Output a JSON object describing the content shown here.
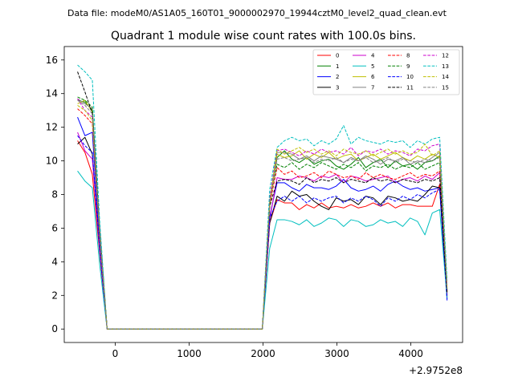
{
  "chart_data": {
    "type": "line",
    "suptitle": "Data file: modeM0/AS1A05_160T01_9000002970_19944cztM0_level2_quad_clean.evt",
    "title": "Quadrant 1 module wise count rates with 100.0s bins.",
    "xlabel": "",
    "ylabel": "",
    "x_offset_label": "+2.9752e8",
    "xlim": [
      -690,
      4700
    ],
    "ylim": [
      -0.8,
      16.8
    ],
    "x_ticks": [
      0,
      1000,
      2000,
      3000,
      4000
    ],
    "y_ticks": [
      0,
      2,
      4,
      6,
      8,
      10,
      12,
      14,
      16
    ],
    "x": [
      -510,
      -410,
      -310,
      -210,
      -110,
      1990,
      2090,
      2190,
      2290,
      2390,
      2490,
      2590,
      2690,
      2790,
      2890,
      2990,
      3090,
      3190,
      3290,
      3390,
      3490,
      3590,
      3690,
      3790,
      3890,
      3990,
      4090,
      4190,
      4290,
      4390,
      4490
    ],
    "legend": {
      "location": "upper-right",
      "columns": 4
    },
    "series": [
      {
        "name": "0",
        "color": "#ff0000",
        "dash": "solid",
        "values": [
          11.2,
          10.5,
          9.2,
          4.5,
          0.0,
          0.0,
          6.3,
          7.7,
          7.5,
          7.5,
          7.1,
          7.4,
          7.2,
          7.5,
          7.2,
          7.3,
          7.2,
          7.4,
          7.2,
          7.3,
          7.5,
          7.3,
          7.5,
          7.2,
          7.4,
          7.4,
          7.3,
          7.3,
          7.3,
          8.6,
          2.0
        ]
      },
      {
        "name": "1",
        "color": "#008000",
        "dash": "solid",
        "values": [
          13.6,
          13.5,
          13.0,
          5.8,
          0.0,
          0.0,
          7.5,
          10.2,
          10.6,
          10.1,
          9.9,
          10.2,
          9.8,
          10.0,
          10.1,
          9.7,
          9.5,
          9.8,
          10.2,
          9.6,
          9.9,
          10.1,
          9.6,
          10.0,
          9.7,
          9.8,
          9.5,
          9.9,
          10.0,
          10.3,
          2.3
        ]
      },
      {
        "name": "2",
        "color": "#0000ff",
        "dash": "solid",
        "values": [
          12.6,
          11.5,
          11.7,
          5.0,
          0.0,
          0.0,
          6.7,
          8.7,
          8.7,
          8.4,
          8.2,
          8.6,
          8.4,
          8.4,
          8.3,
          8.5,
          8.9,
          8.4,
          8.2,
          8.3,
          8.5,
          8.2,
          8.6,
          8.8,
          8.5,
          8.3,
          8.4,
          8.2,
          8.3,
          8.4,
          1.7
        ]
      },
      {
        "name": "3",
        "color": "#000000",
        "dash": "solid",
        "values": [
          11.0,
          11.4,
          10.4,
          4.6,
          0.0,
          0.0,
          6.3,
          7.9,
          7.6,
          8.2,
          7.9,
          8.0,
          7.6,
          7.3,
          7.1,
          7.8,
          7.6,
          7.7,
          7.4,
          7.9,
          7.8,
          7.4,
          7.9,
          7.8,
          7.6,
          7.7,
          7.6,
          8.0,
          8.5,
          8.4,
          1.9
        ]
      },
      {
        "name": "4",
        "color": "#cc00cc",
        "dash": "solid",
        "values": [
          11.7,
          10.6,
          10.1,
          4.7,
          0.0,
          0.0,
          6.5,
          9.0,
          8.9,
          8.9,
          9.1,
          9.0,
          8.8,
          9.1,
          9.0,
          9.2,
          8.7,
          9.1,
          9.0,
          8.8,
          8.9,
          9.0,
          9.1,
          8.7,
          8.9,
          9.0,
          8.8,
          9.1,
          8.9,
          9.3,
          2.1
        ]
      },
      {
        "name": "5",
        "color": "#00bfbf",
        "dash": "solid",
        "values": [
          9.4,
          8.8,
          8.4,
          3.8,
          0.0,
          0.0,
          4.8,
          6.5,
          6.5,
          6.4,
          6.2,
          6.5,
          6.1,
          6.3,
          6.6,
          6.5,
          6.1,
          6.5,
          6.4,
          6.1,
          6.2,
          6.5,
          6.3,
          6.4,
          6.1,
          6.6,
          6.4,
          5.6,
          6.9,
          7.1,
          1.8
        ]
      },
      {
        "name": "6",
        "color": "#bfbf00",
        "dash": "solid",
        "values": [
          13.4,
          13.6,
          12.9,
          5.6,
          0.0,
          0.0,
          7.3,
          10.4,
          10.2,
          10.3,
          10.6,
          10.1,
          10.4,
          10.2,
          10.5,
          10.1,
          10.3,
          10.4,
          10.0,
          10.2,
          10.4,
          10.1,
          10.3,
          10.5,
          10.2,
          10.0,
          10.3,
          10.1,
          10.4,
          10.2,
          2.4
        ]
      },
      {
        "name": "7",
        "color": "#808080",
        "dash": "solid",
        "values": [
          13.7,
          13.4,
          13.1,
          5.8,
          0.0,
          0.0,
          7.6,
          10.5,
          10.5,
          10.4,
          10.1,
          10.3,
          10.0,
          10.3,
          10.2,
          10.1,
          9.9,
          10.2,
          10.0,
          10.3,
          10.1,
          9.8,
          10.1,
          10.0,
          10.2,
          9.8,
          10.0,
          9.9,
          10.2,
          10.5,
          2.5
        ]
      },
      {
        "name": "8",
        "color": "#ff0000",
        "dash": "dashed",
        "values": [
          13.1,
          12.7,
          12.2,
          5.6,
          0.0,
          0.0,
          7.4,
          9.6,
          9.2,
          9.4,
          9.0,
          9.1,
          9.3,
          9.0,
          9.4,
          9.2,
          9.0,
          9.1,
          8.9,
          9.3,
          9.0,
          9.2,
          9.0,
          8.9,
          9.1,
          9.3,
          9.0,
          9.2,
          9.1,
          9.4,
          2.2
        ]
      },
      {
        "name": "9",
        "color": "#008000",
        "dash": "dashed",
        "values": [
          13.8,
          13.6,
          13.2,
          5.9,
          0.0,
          0.0,
          7.7,
          9.8,
          9.6,
          9.9,
          9.5,
          9.8,
          9.6,
          9.9,
          9.7,
          9.5,
          9.8,
          9.6,
          9.9,
          9.4,
          9.7,
          9.6,
          9.8,
          9.5,
          9.7,
          9.6,
          9.9,
          9.5,
          9.7,
          9.9,
          2.3
        ]
      },
      {
        "name": "10",
        "color": "#0000ff",
        "dash": "dashed",
        "values": [
          11.5,
          10.9,
          10.5,
          4.8,
          0.0,
          0.0,
          6.6,
          7.6,
          7.9,
          7.6,
          7.9,
          7.5,
          7.8,
          7.6,
          7.8,
          7.9,
          7.5,
          7.8,
          7.6,
          7.9,
          7.7,
          7.3,
          7.8,
          7.6,
          7.9,
          7.7,
          8.0,
          7.8,
          8.1,
          8.3,
          1.8
        ]
      },
      {
        "name": "11",
        "color": "#000000",
        "dash": "dashed",
        "values": [
          15.3,
          14.1,
          12.8,
          5.9,
          0.0,
          0.0,
          7.3,
          8.8,
          8.9,
          8.8,
          8.6,
          9.0,
          8.7,
          8.9,
          8.8,
          9.0,
          8.7,
          8.9,
          8.8,
          8.7,
          9.0,
          8.8,
          8.9,
          8.7,
          8.9,
          8.8,
          8.7,
          8.9,
          8.8,
          9.0,
          2.1
        ]
      },
      {
        "name": "12",
        "color": "#cc00cc",
        "dash": "dashed",
        "values": [
          13.7,
          13.0,
          12.6,
          5.7,
          0.0,
          0.0,
          7.8,
          10.6,
          10.7,
          10.5,
          10.3,
          10.6,
          10.4,
          10.7,
          10.5,
          10.6,
          10.4,
          10.8,
          10.3,
          10.6,
          10.5,
          10.7,
          10.4,
          10.6,
          10.5,
          10.3,
          10.7,
          10.6,
          10.9,
          11.0,
          2.6
        ]
      },
      {
        "name": "13",
        "color": "#00bfbf",
        "dash": "dashed",
        "values": [
          15.7,
          15.3,
          14.8,
          6.4,
          0.0,
          0.0,
          8.3,
          10.8,
          11.2,
          11.4,
          11.2,
          11.3,
          10.9,
          11.2,
          11.0,
          11.3,
          12.1,
          11.0,
          11.4,
          11.2,
          11.1,
          11.0,
          11.2,
          11.1,
          11.2,
          10.8,
          11.2,
          11.0,
          11.3,
          11.4,
          2.9
        ]
      },
      {
        "name": "14",
        "color": "#bfbf00",
        "dash": "dashed",
        "values": [
          13.3,
          13.0,
          12.4,
          5.5,
          0.0,
          0.0,
          7.5,
          10.7,
          10.4,
          10.6,
          10.8,
          10.5,
          10.7,
          10.4,
          10.6,
          10.3,
          10.7,
          10.5,
          10.4,
          10.6,
          10.3,
          10.5,
          10.7,
          10.4,
          10.6,
          10.4,
          10.5,
          11.0,
          10.3,
          10.6,
          2.4
        ]
      },
      {
        "name": "15",
        "color": "#808080",
        "dash": "dashed",
        "values": [
          13.6,
          13.3,
          12.8,
          5.7,
          0.0,
          0.0,
          7.5,
          10.1,
          10.2,
          10.0,
          10.1,
          10.2,
          9.9,
          10.1,
          10.0,
          10.2,
          9.9,
          10.1,
          10.0,
          10.2,
          9.9,
          10.0,
          10.2,
          9.9,
          10.1,
          10.0,
          9.9,
          10.1,
          10.0,
          10.2,
          2.4
        ]
      }
    ]
  }
}
